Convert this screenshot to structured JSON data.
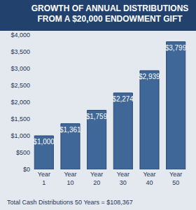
{
  "chart_data": {
    "type": "bar",
    "title": "GROWTH OF ANNUAL DISTRIBUTIONS FROM A $20,000 ENDOWMENT GIFT",
    "categories": [
      "Year 1",
      "Year 10",
      "Year 20",
      "Year 30",
      "Year 40",
      "Year 50"
    ],
    "values": [
      1000,
      1361,
      1759,
      2274,
      2939,
      3799
    ],
    "value_labels": [
      "$1,000",
      "$1,361",
      "$1,759",
      "$2,274",
      "$2,939",
      "$3,799"
    ],
    "color": "#3f6798",
    "ylim": [
      0,
      4000
    ],
    "yticks": [
      {
        "value": 0,
        "label": "$0"
      },
      {
        "value": 500,
        "label": "$500"
      },
      {
        "value": 1000,
        "label": "$1,000"
      },
      {
        "value": 1500,
        "label": "$1,500"
      },
      {
        "value": 2000,
        "label": "$2,000"
      },
      {
        "value": 2500,
        "label": "$2,500"
      },
      {
        "value": 3000,
        "label": "$3,000"
      },
      {
        "value": 3500,
        "label": "$3,500"
      },
      {
        "value": 4000,
        "label": "$4,000"
      }
    ],
    "grid": false,
    "data_labels": true,
    "annotations": [
      "Total Cash Distributions 50 Years = $108,367"
    ]
  }
}
